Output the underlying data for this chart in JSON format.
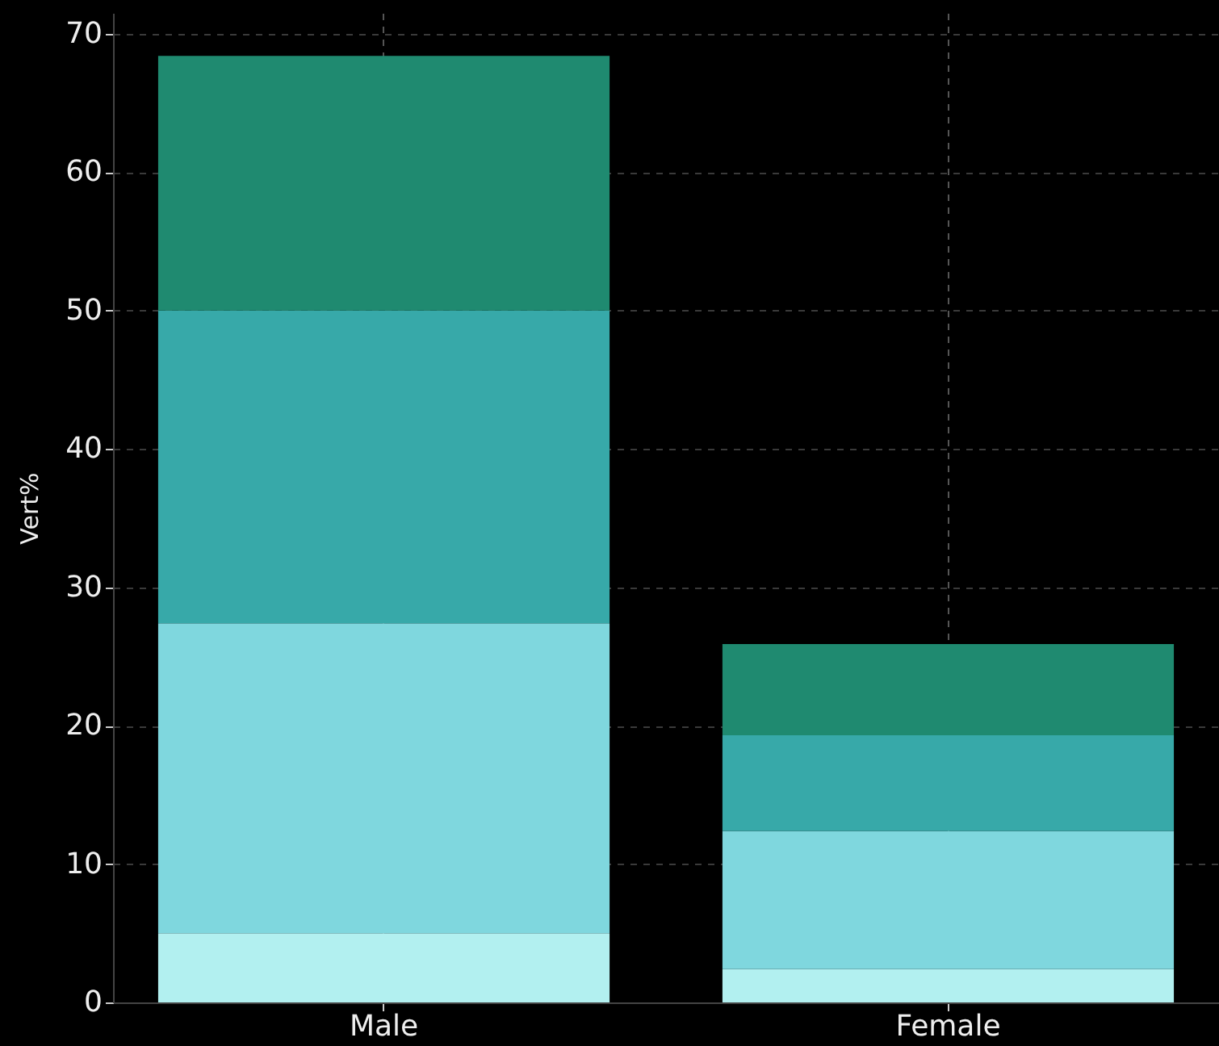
{
  "chart_data": {
    "type": "bar",
    "stacked": true,
    "ylabel": "Vert%",
    "categories": [
      "Male",
      "Female"
    ],
    "series": [
      {
        "color": "#b2f0f0",
        "values": [
          5.0,
          2.4
        ]
      },
      {
        "color": "#7fd7de",
        "values": [
          22.4,
          10.0
        ]
      },
      {
        "color": "#37a9a9",
        "values": [
          22.6,
          6.9
        ]
      },
      {
        "color": "#1f8a70",
        "values": [
          18.4,
          6.6
        ]
      }
    ],
    "ylim": [
      0,
      71.5
    ],
    "yticks": [
      0,
      10,
      20,
      30,
      40,
      50,
      60,
      70
    ],
    "grid": true
  }
}
